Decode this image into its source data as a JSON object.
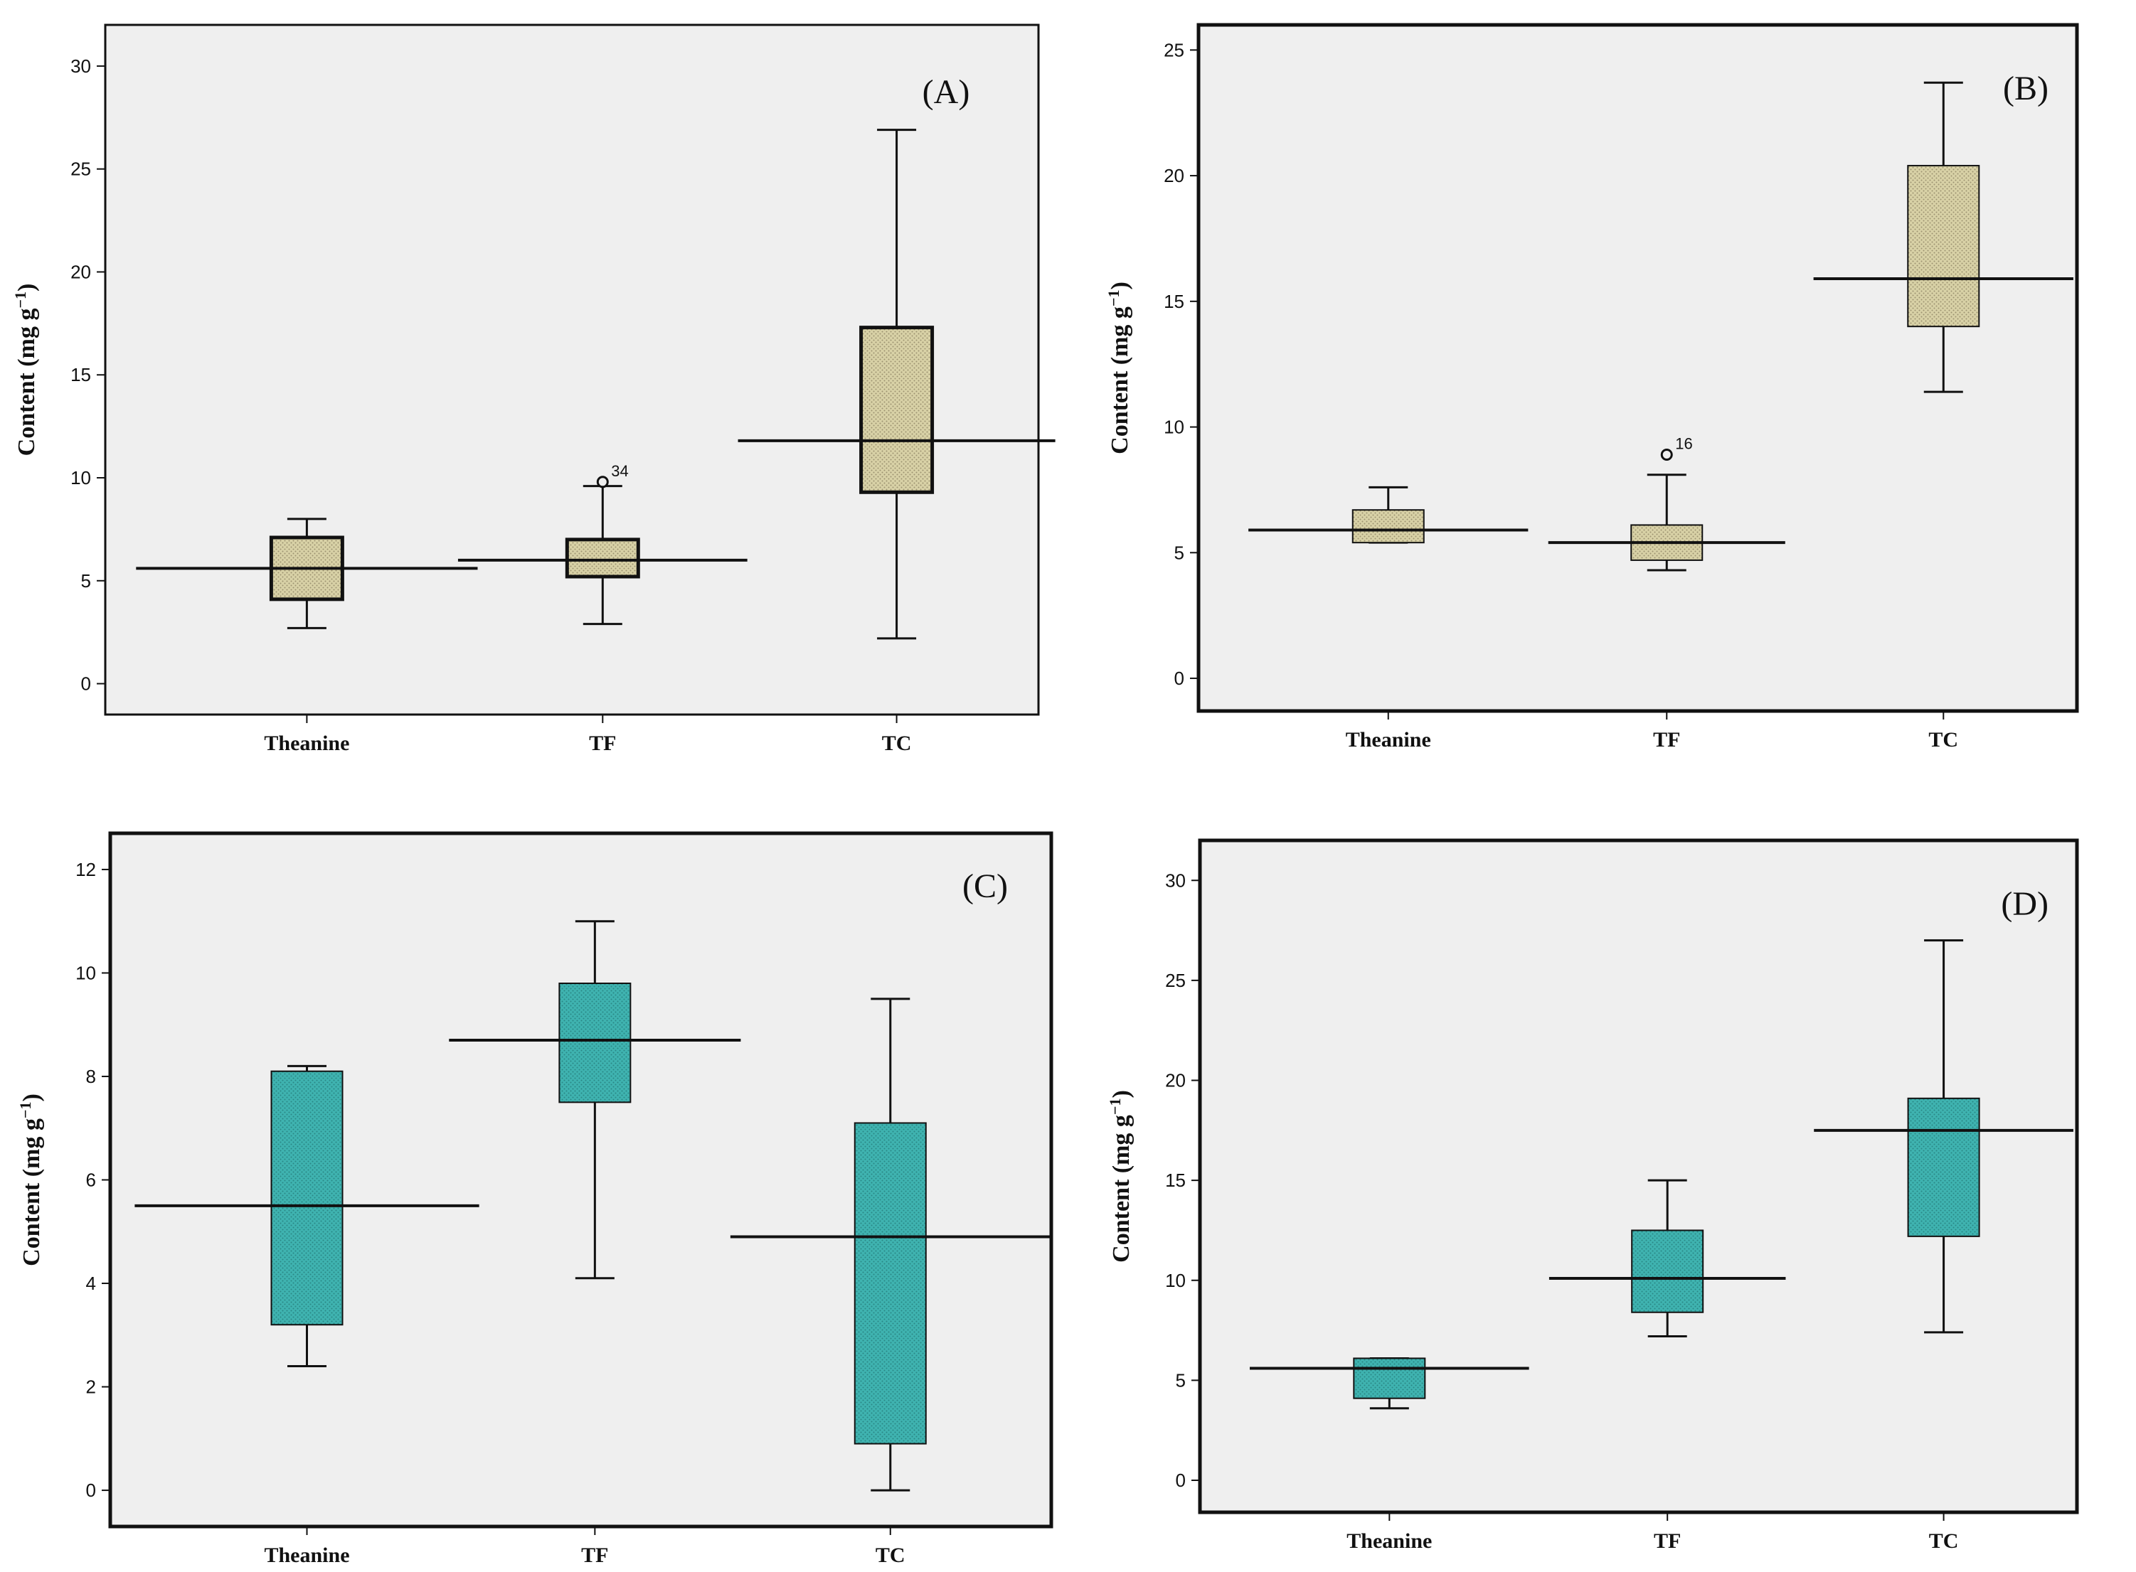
{
  "chart_data": [
    {
      "type": "box",
      "panel_label": "(A)",
      "ylabel": "Content (mg g",
      "ylabel_sup": "−1",
      "ylabel_close": ")",
      "ylim": [
        -1.5,
        32
      ],
      "yticks": [
        0,
        5,
        10,
        15,
        20,
        25,
        30
      ],
      "fill": "#d8d1a6",
      "categories": [
        "Theanine",
        "TF",
        "TC"
      ],
      "boxes": [
        {
          "name": "Theanine",
          "min": 2.7,
          "q1": 4.1,
          "median": 5.6,
          "q3": 7.1,
          "max": 8.0
        },
        {
          "name": "TF",
          "min": 2.9,
          "q1": 5.2,
          "median": 6.0,
          "q3": 7.0,
          "max": 9.6,
          "outliers": [
            {
              "value": 9.8,
              "label": "34"
            }
          ]
        },
        {
          "name": "TC",
          "min": 2.2,
          "q1": 9.3,
          "median": 11.8,
          "q3": 17.3,
          "max": 26.9
        }
      ]
    },
    {
      "type": "box",
      "panel_label": "(B)",
      "ylabel": "Content (mg g",
      "ylabel_sup": "−1",
      "ylabel_close": ")",
      "ylim": [
        -1.3,
        26
      ],
      "yticks": [
        0,
        5,
        10,
        15,
        20,
        25
      ],
      "fill": "#d8d1a6",
      "categories": [
        "Theanine",
        "TF",
        "TC"
      ],
      "boxes": [
        {
          "name": "Theanine",
          "min": 5.4,
          "q1": 5.4,
          "median": 5.9,
          "q3": 6.7,
          "max": 7.6
        },
        {
          "name": "TF",
          "min": 4.3,
          "q1": 4.7,
          "median": 5.4,
          "q3": 6.1,
          "max": 8.1,
          "outliers": [
            {
              "value": 8.9,
              "label": "16"
            }
          ]
        },
        {
          "name": "TC",
          "min": 11.4,
          "q1": 14.0,
          "median": 15.9,
          "q3": 20.4,
          "max": 23.7
        }
      ]
    },
    {
      "type": "box",
      "panel_label": "(C)",
      "ylabel": "Content (mg g",
      "ylabel_sup": "−1",
      "ylabel_close": ")",
      "ylim": [
        -0.7,
        12.7
      ],
      "yticks": [
        0,
        2,
        4,
        6,
        8,
        10,
        12
      ],
      "fill": "#3fb3b0",
      "categories": [
        "Theanine",
        "TF",
        "TC"
      ],
      "boxes": [
        {
          "name": "Theanine",
          "min": 2.4,
          "q1": 3.2,
          "median": 5.5,
          "q3": 8.1,
          "max": 8.2
        },
        {
          "name": "TF",
          "min": 4.1,
          "q1": 7.5,
          "median": 8.7,
          "q3": 9.8,
          "max": 11.0
        },
        {
          "name": "TC",
          "min": 0.0,
          "q1": 0.9,
          "median": 4.9,
          "q3": 7.1,
          "max": 9.5
        }
      ]
    },
    {
      "type": "box",
      "panel_label": "(D)",
      "ylabel": "Content (mg g",
      "ylabel_sup": "−1",
      "ylabel_close": ")",
      "ylim": [
        -1.6,
        32
      ],
      "yticks": [
        0,
        5,
        10,
        15,
        20,
        25,
        30
      ],
      "fill": "#3fb3b0",
      "categories": [
        "Theanine",
        "TF",
        "TC"
      ],
      "boxes": [
        {
          "name": "Theanine",
          "min": 3.6,
          "q1": 4.1,
          "median": 5.6,
          "q3": 6.1,
          "max": 6.1
        },
        {
          "name": "TF",
          "min": 7.2,
          "q1": 8.4,
          "median": 10.1,
          "q3": 12.5,
          "max": 15.0
        },
        {
          "name": "TC",
          "min": 7.4,
          "q1": 12.2,
          "median": 17.5,
          "q3": 19.1,
          "max": 27.0
        }
      ]
    }
  ]
}
